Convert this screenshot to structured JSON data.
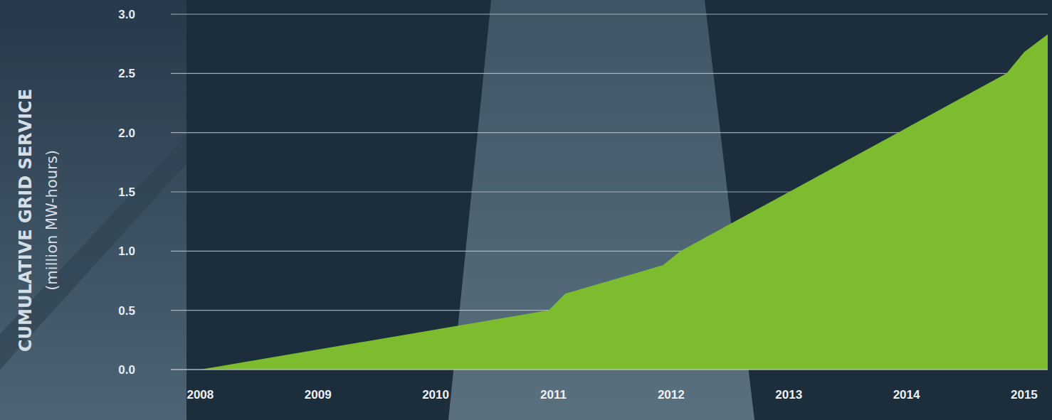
{
  "chart_data": {
    "type": "area",
    "y_label": "CUMULATIVE GRID SERVICE",
    "y_unit_label": "(million MW-hours)",
    "x": [
      2008.0,
      2010.96,
      2011.1,
      2011.93,
      2012.08,
      2014.85,
      2015.0,
      2015.2
    ],
    "values": [
      0,
      0.5,
      0.64,
      0.88,
      1.0,
      2.5,
      2.68,
      2.83
    ],
    "color": "#7dbb2f",
    "xlim": [
      2007.75,
      2015.2
    ],
    "xticks": [
      2008,
      2009,
      2010,
      2011,
      2012,
      2013,
      2014,
      2015
    ],
    "ylim": [
      0,
      3
    ],
    "yticks": [
      {
        "value": 0,
        "label": "0.0"
      },
      0.5,
      {
        "value": 1,
        "label": "1.0"
      },
      1.5,
      {
        "value": 2,
        "label": "2.0"
      },
      2.5,
      {
        "value": 3,
        "label": "3.0"
      }
    ],
    "grid": true
  }
}
